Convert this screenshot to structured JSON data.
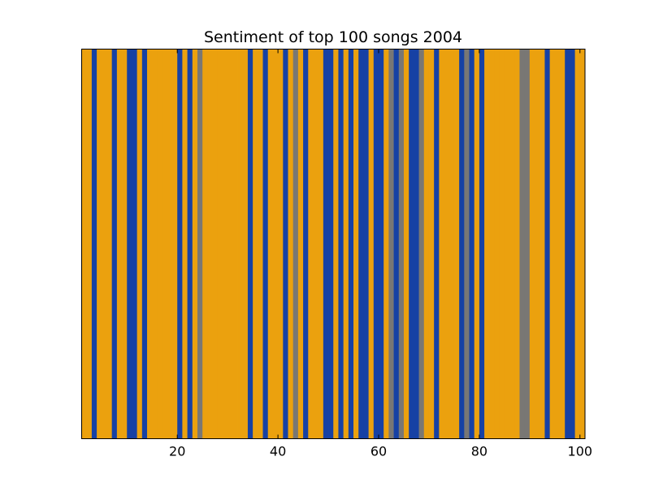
{
  "chart_data": {
    "type": "bar",
    "title": "Sentiment of top 100 songs 2004",
    "xlabel": "",
    "ylabel": "",
    "xlim": [
      1,
      101
    ],
    "ylim": [
      0,
      1
    ],
    "x_ticks": [
      20,
      40,
      60,
      80,
      100
    ],
    "y_ticks": [],
    "grid": false,
    "legend": "none",
    "colors": {
      "positive": "#eba10e",
      "negative": "#1641a4",
      "neutral": "#797774"
    },
    "bar_width": 1,
    "sentiment": [
      "positive",
      "positive",
      "negative",
      "positive",
      "positive",
      "positive",
      "negative",
      "positive",
      "positive",
      "negative",
      "negative",
      "positive",
      "negative",
      "positive",
      "positive",
      "positive",
      "positive",
      "positive",
      "positive",
      "negative",
      "positive",
      "negative",
      "positive",
      "neutral",
      "positive",
      "positive",
      "positive",
      "positive",
      "positive",
      "positive",
      "positive",
      "positive",
      "positive",
      "negative",
      "positive",
      "positive",
      "negative",
      "positive",
      "positive",
      "positive",
      "negative",
      "positive",
      "neutral",
      "positive",
      "negative",
      "positive",
      "positive",
      "positive",
      "negative",
      "negative",
      "positive",
      "negative",
      "positive",
      "negative",
      "positive",
      "negative",
      "negative",
      "positive",
      "negative",
      "negative",
      "positive",
      "neutral",
      "negative",
      "neutral",
      "positive",
      "negative",
      "negative",
      "neutral",
      "positive",
      "positive",
      "negative",
      "positive",
      "positive",
      "positive",
      "positive",
      "negative",
      "neutral",
      "negative",
      "positive",
      "negative",
      "positive",
      "positive",
      "positive",
      "positive",
      "positive",
      "positive",
      "positive",
      "neutral",
      "neutral",
      "positive",
      "positive",
      "positive",
      "negative",
      "positive",
      "positive",
      "positive",
      "negative",
      "negative",
      "positive",
      "positive"
    ]
  }
}
